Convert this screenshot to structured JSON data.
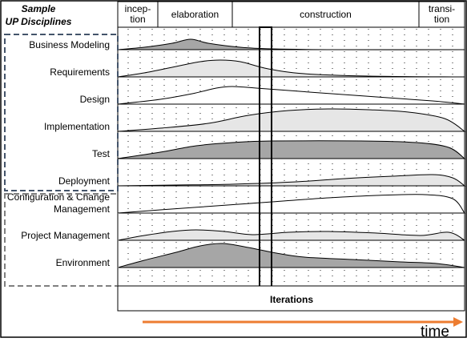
{
  "header": {
    "title_line1": "Sample",
    "title_line2": "UP Disciplines"
  },
  "phases": [
    {
      "label_lines": [
        "incep-",
        "tion"
      ]
    },
    {
      "label_lines": [
        "elaboration"
      ]
    },
    {
      "label_lines": [
        "construction"
      ]
    },
    {
      "label_lines": [
        "transi-",
        "tion"
      ]
    }
  ],
  "disciplines": [
    {
      "label_lines": [
        "Business Modeling"
      ],
      "fill": "#a6a6a6"
    },
    {
      "label_lines": [
        "Requirements"
      ],
      "fill": "#e6e6e6"
    },
    {
      "label_lines": [
        "Design"
      ],
      "fill": "#ffffff"
    },
    {
      "label_lines": [
        "Implementation"
      ],
      "fill": "#e6e6e6"
    },
    {
      "label_lines": [
        "Test"
      ],
      "fill": "#a6a6a6"
    },
    {
      "label_lines": [
        "Deployment"
      ],
      "fill": "#e6e6e6"
    },
    {
      "label_lines": [
        "Configuration & Change",
        "Management"
      ],
      "fill": "#ffffff"
    },
    {
      "label_lines": [
        "Project Management"
      ],
      "fill": "#e6e6e6"
    },
    {
      "label_lines": [
        "Environment"
      ],
      "fill": "#a6a6a6"
    }
  ],
  "footer": {
    "iterations_label": "Iterations",
    "time_label": "time"
  },
  "colors": {
    "time_arrow": "#ed7d31",
    "group_border": "#44546a",
    "group_border_support": "#808080"
  }
}
